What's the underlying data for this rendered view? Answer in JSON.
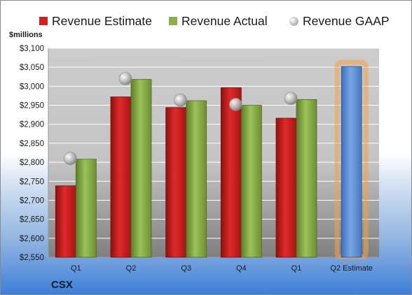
{
  "company": "CSX",
  "chart_data": {
    "type": "bar",
    "ylabel": "$millions",
    "ylim": [
      2550,
      3100
    ],
    "ytick_step": 50,
    "grid": true,
    "legend_position": "top",
    "categories": [
      "Q1",
      "Q2",
      "Q3",
      "Q4",
      "Q1",
      "Q2 Estimate"
    ],
    "series": [
      {
        "name": "Revenue Estimate",
        "kind": "bar",
        "color": "#d42020",
        "values": [
          2738,
          2972,
          2944,
          2996,
          2916,
          null
        ]
      },
      {
        "name": "Revenue Actual",
        "kind": "bar",
        "color": "#8bb04a",
        "values": [
          2808,
          3018,
          2962,
          2950,
          2965,
          null
        ]
      },
      {
        "name": "Revenue GAAP",
        "kind": "marker",
        "color": "#a6a6a6",
        "values": [
          2810,
          3020,
          2963,
          2952,
          2968,
          null
        ]
      }
    ],
    "estimate_bar": {
      "category": "Q2 Estimate",
      "value": 3052,
      "color": "#5b8fd6",
      "glow_color": "#f5a04a"
    },
    "colors": {
      "plot_bg_top": "#cccccc",
      "plot_bg_bottom": "#7f7f7f",
      "grid": "#ffffff"
    }
  }
}
